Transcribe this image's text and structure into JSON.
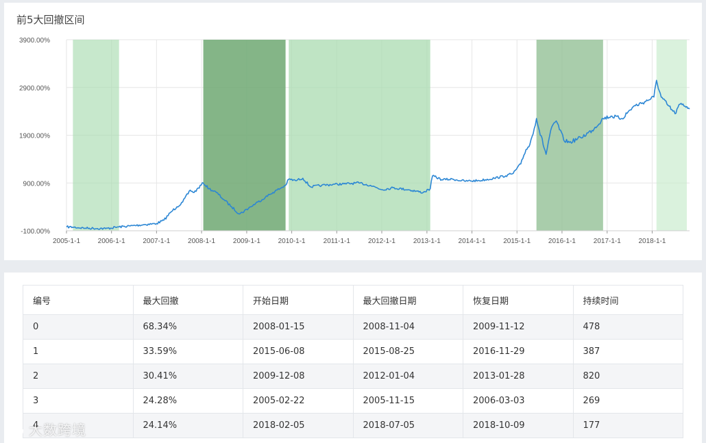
{
  "chart_card": {
    "title": "前5大回撤区间"
  },
  "chart_data": {
    "type": "line",
    "title": "前5大回撤区间",
    "y_tick_labels": [
      "3900.00%",
      "2900.00%",
      "1900.00%",
      "900.00%",
      "-100.00%"
    ],
    "y_ticks": [
      3900,
      2900,
      1900,
      900,
      -100
    ],
    "ylim": [
      -100,
      3900
    ],
    "x_tick_labels": [
      "2005-1-1",
      "2006-1-1",
      "2007-1-1",
      "2008-1-1",
      "2009-1-1",
      "2010-1-1",
      "2011-1-1",
      "2012-1-1",
      "2013-1-1",
      "2014-1-1",
      "2015-1-1",
      "2016-1-1",
      "2017-1-1",
      "2018-1-1"
    ],
    "xlim": [
      "2005-01-01",
      "2018-10-31"
    ],
    "grid": true,
    "series": [
      {
        "color": "#2b86d4",
        "points": [
          [
            "2005-01-01",
            -20
          ],
          [
            "2005-02-22",
            -25
          ],
          [
            "2005-06-01",
            -45
          ],
          [
            "2005-11-15",
            -55
          ],
          [
            "2006-03-03",
            -20
          ],
          [
            "2006-06-01",
            0
          ],
          [
            "2006-10-01",
            30
          ],
          [
            "2007-01-01",
            50
          ],
          [
            "2007-03-01",
            120
          ],
          [
            "2007-05-01",
            300
          ],
          [
            "2007-06-15",
            400
          ],
          [
            "2007-08-01",
            500
          ],
          [
            "2007-10-01",
            750
          ],
          [
            "2007-11-01",
            700
          ],
          [
            "2008-01-15",
            900
          ],
          [
            "2008-03-01",
            780
          ],
          [
            "2008-05-01",
            700
          ],
          [
            "2008-07-01",
            550
          ],
          [
            "2008-09-01",
            400
          ],
          [
            "2008-11-04",
            250
          ],
          [
            "2009-02-01",
            400
          ],
          [
            "2009-04-01",
            500
          ],
          [
            "2009-06-01",
            600
          ],
          [
            "2009-08-01",
            700
          ],
          [
            "2009-11-12",
            850
          ],
          [
            "2009-12-08",
            980
          ],
          [
            "2010-02-01",
            950
          ],
          [
            "2010-04-01",
            1000
          ],
          [
            "2010-06-01",
            820
          ],
          [
            "2010-09-01",
            850
          ],
          [
            "2010-12-01",
            870
          ],
          [
            "2011-03-01",
            880
          ],
          [
            "2011-07-01",
            900
          ],
          [
            "2011-10-01",
            850
          ],
          [
            "2012-01-04",
            760
          ],
          [
            "2012-04-01",
            800
          ],
          [
            "2012-08-01",
            760
          ],
          [
            "2012-12-01",
            700
          ],
          [
            "2013-01-28",
            780
          ],
          [
            "2013-02-15",
            1050
          ],
          [
            "2013-05-01",
            970
          ],
          [
            "2013-08-01",
            980
          ],
          [
            "2013-11-01",
            940
          ],
          [
            "2014-03-01",
            950
          ],
          [
            "2014-07-01",
            1000
          ],
          [
            "2014-10-01",
            1050
          ],
          [
            "2014-12-01",
            1100
          ],
          [
            "2015-02-01",
            1300
          ],
          [
            "2015-03-15",
            1600
          ],
          [
            "2015-04-15",
            1700
          ],
          [
            "2015-06-08",
            2250
          ],
          [
            "2015-07-01",
            2000
          ],
          [
            "2015-08-25",
            1500
          ],
          [
            "2015-10-01",
            2000
          ],
          [
            "2015-11-15",
            2200
          ],
          [
            "2016-01-15",
            1800
          ],
          [
            "2016-03-01",
            1750
          ],
          [
            "2016-06-01",
            1850
          ],
          [
            "2016-09-01",
            2000
          ],
          [
            "2016-11-29",
            2250
          ],
          [
            "2017-02-01",
            2300
          ],
          [
            "2017-05-01",
            2250
          ],
          [
            "2017-08-01",
            2500
          ],
          [
            "2017-11-01",
            2600
          ],
          [
            "2018-01-15",
            2700
          ],
          [
            "2018-02-05",
            3050
          ],
          [
            "2018-03-15",
            2700
          ],
          [
            "2018-05-01",
            2550
          ],
          [
            "2018-07-05",
            2350
          ],
          [
            "2018-08-15",
            2550
          ],
          [
            "2018-10-09",
            2500
          ],
          [
            "2018-10-31",
            2450
          ]
        ]
      }
    ],
    "shaded_bands": [
      {
        "start": "2008-01-15",
        "end": "2009-11-12",
        "color": "#6fa872",
        "opacity": 0.85
      },
      {
        "start": "2015-06-08",
        "end": "2016-11-29",
        "color": "#8cbc8f",
        "opacity": 0.75
      },
      {
        "start": "2009-12-08",
        "end": "2013-01-28",
        "color": "#a9dbb0",
        "opacity": 0.75
      },
      {
        "start": "2005-02-22",
        "end": "2006-03-03",
        "color": "#a9dbb0",
        "opacity": 0.65
      },
      {
        "start": "2018-02-05",
        "end": "2018-10-09",
        "color": "#c6ebcb",
        "opacity": 0.65
      }
    ]
  },
  "table": {
    "headers": [
      "编号",
      "最大回撤",
      "开始日期",
      "最大回撤日期",
      "恢复日期",
      "持续时间"
    ],
    "rows": [
      [
        "0",
        "68.34%",
        "2008-01-15",
        "2008-11-04",
        "2009-11-12",
        "478"
      ],
      [
        "1",
        "33.59%",
        "2015-06-08",
        "2015-08-25",
        "2016-11-29",
        "387"
      ],
      [
        "2",
        "30.41%",
        "2009-12-08",
        "2012-01-04",
        "2013-01-28",
        "820"
      ],
      [
        "3",
        "24.28%",
        "2005-02-22",
        "2005-11-15",
        "2006-03-03",
        "269"
      ],
      [
        "4",
        "24.14%",
        "2018-02-05",
        "2018-07-05",
        "2018-10-09",
        "177"
      ]
    ]
  },
  "watermark": {
    "text": "大数跨境"
  }
}
